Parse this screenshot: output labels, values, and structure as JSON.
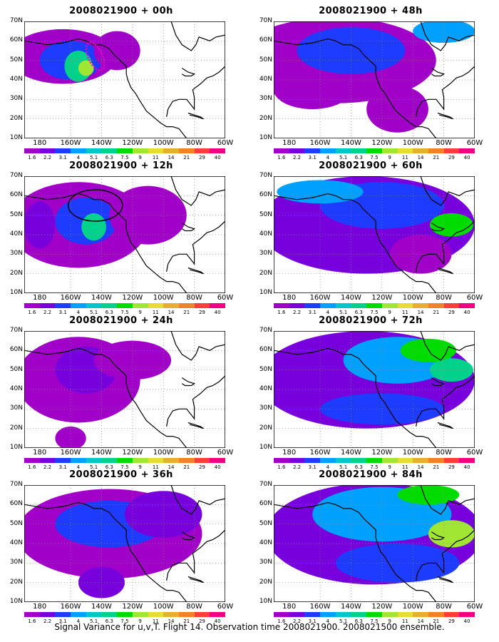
{
  "caption": "Signal Variance for u,v,T. Flight 14. Observation time 2008021900. 2008021500 ensemble.",
  "colorbar": {
    "labels": [
      "1.6",
      "2.2",
      "3.1",
      "4",
      "5.1",
      "6.3",
      "7.5",
      "9",
      "11",
      "14",
      "21",
      "29",
      "40"
    ],
    "colors": [
      "#a000c8",
      "#7800dc",
      "#1e3cff",
      "#00a0ff",
      "#00c8c8",
      "#00d28c",
      "#00dc00",
      "#a0e632",
      "#e6dc32",
      "#e6af2d",
      "#f08228",
      "#fa3c3c",
      "#f00082"
    ]
  },
  "axes": {
    "xticks": [
      "180",
      "160W",
      "140W",
      "120W",
      "100W",
      "80W",
      "60W"
    ],
    "yticks": [
      "70N",
      "60N",
      "50N",
      "40N",
      "30N",
      "20N",
      "10N"
    ],
    "lon_range": [
      170,
      300
    ],
    "lat_range": [
      10,
      70
    ]
  },
  "chart_data": [
    {
      "type": "heatmap",
      "title": "2008021900 + 00h"
    },
    {
      "type": "heatmap",
      "title": "2008021900 + 48h"
    },
    {
      "type": "heatmap",
      "title": "2008021900 + 12h"
    },
    {
      "type": "heatmap",
      "title": "2008021900 + 60h"
    },
    {
      "type": "heatmap",
      "title": "2008021900 + 24h"
    },
    {
      "type": "heatmap",
      "title": "2008021900 + 72h"
    },
    {
      "type": "heatmap",
      "title": "2008021900 + 36h"
    },
    {
      "type": "heatmap",
      "title": "2008021900 + 84h"
    }
  ]
}
